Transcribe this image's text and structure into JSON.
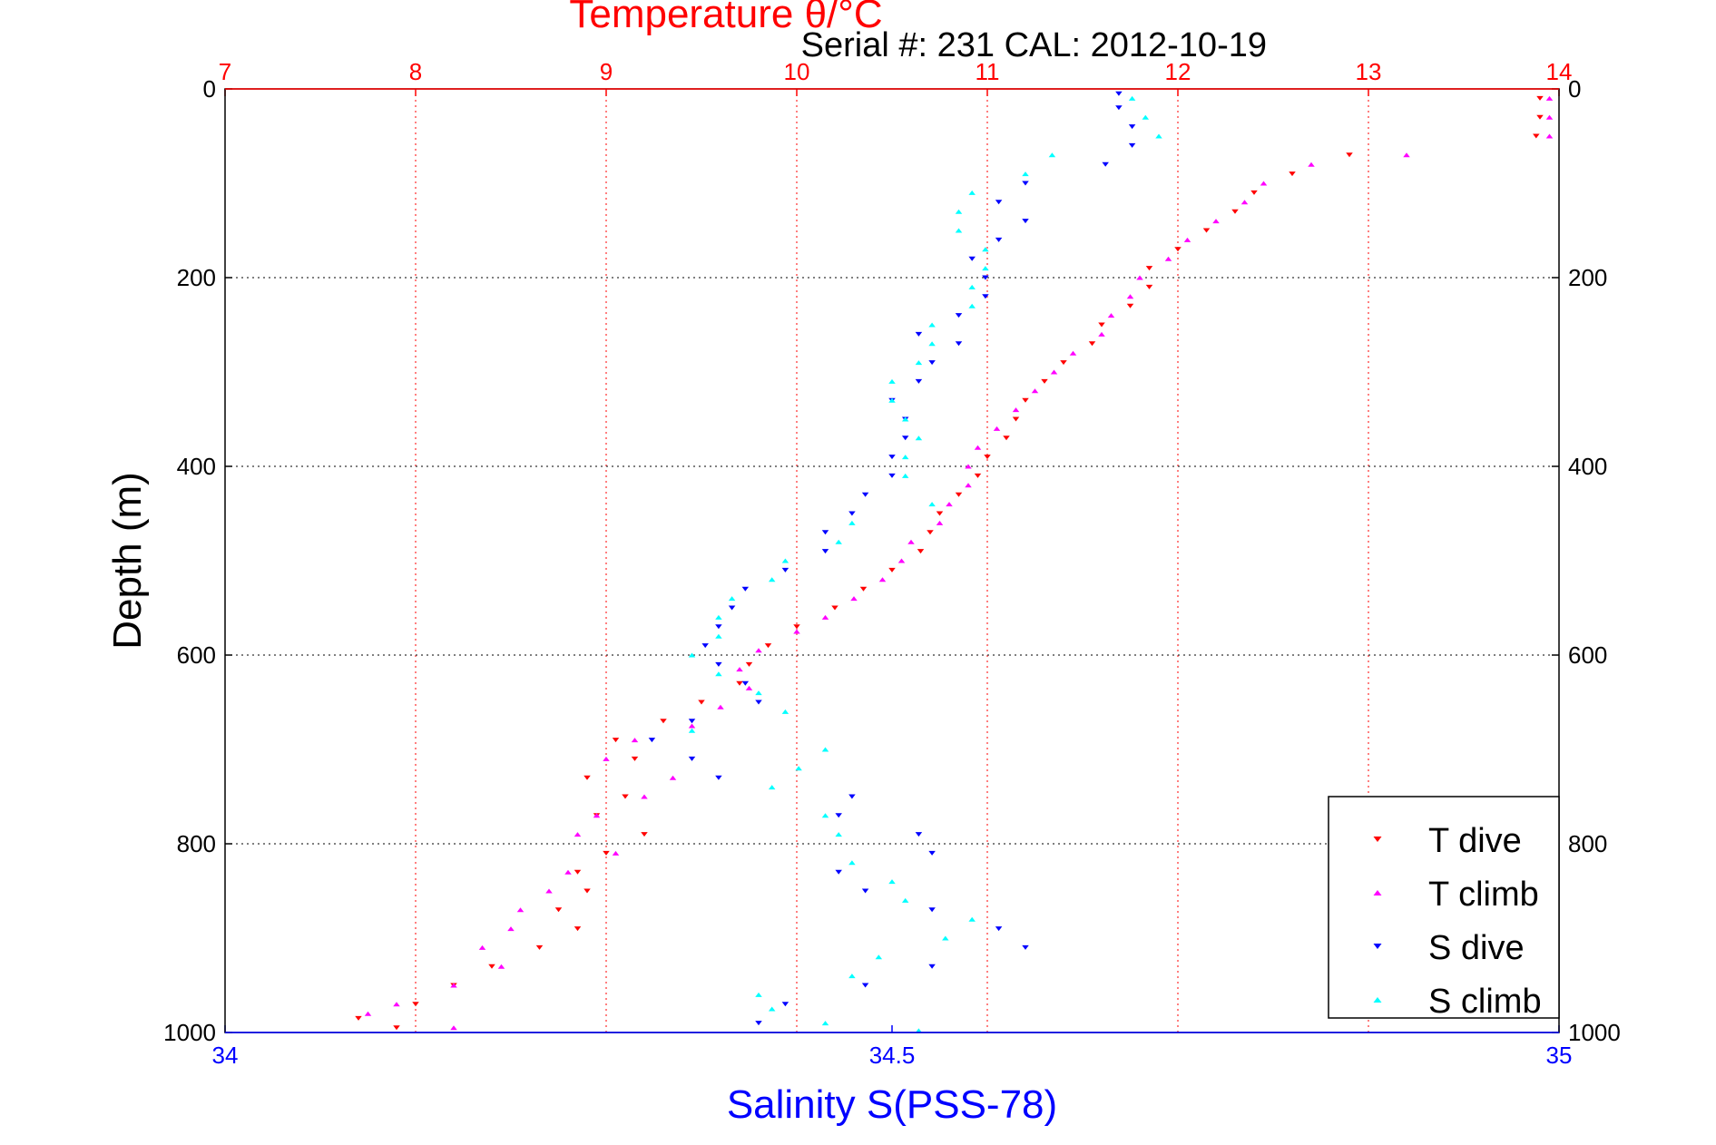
{
  "figure": {
    "top_title": "Temperature θ/°C",
    "subtitle": "Serial #: 231  CAL: 2012-10-19"
  },
  "colors": {
    "t_axis": "#ff0000",
    "s_axis": "#0000ff",
    "t_dive": "#ff0000",
    "t_climb": "#ff00ff",
    "s_dive": "#0000ff",
    "s_climb": "#00ffff",
    "grid_vertical": "#ff0000",
    "grid_horizontal": "#000000"
  },
  "chart_data": {
    "type": "scatter",
    "title": "Temperature θ/°C",
    "xlabel": "Salinity S(PSS-78)",
    "ylabel": "Depth (m)",
    "x_top": {
      "label": "Temperature θ/°C",
      "lim": [
        7,
        14
      ],
      "ticks": [
        7,
        8,
        9,
        10,
        11,
        12,
        13,
        14
      ]
    },
    "x_bottom": {
      "label": "Salinity S(PSS-78)",
      "lim": [
        34,
        35
      ],
      "ticks": [
        34,
        34.5,
        35
      ],
      "tick_labels": [
        "34",
        "34.5",
        "35"
      ]
    },
    "y": {
      "label": "Depth (m)",
      "lim": [
        0,
        1000
      ],
      "reversed": true,
      "ticks": [
        0,
        200,
        400,
        600,
        800,
        1000
      ]
    },
    "grid": true,
    "legend_position": "bottom-right",
    "series": [
      {
        "name": "T dive",
        "axis": "temperature",
        "marker": "triangle-down",
        "color": "#ff0000",
        "points": [
          [
            13.9,
            10
          ],
          [
            13.9,
            30
          ],
          [
            13.88,
            50
          ],
          [
            12.9,
            70
          ],
          [
            12.6,
            90
          ],
          [
            12.4,
            110
          ],
          [
            12.3,
            130
          ],
          [
            12.15,
            150
          ],
          [
            12.0,
            170
          ],
          [
            11.85,
            190
          ],
          [
            11.85,
            210
          ],
          [
            11.75,
            230
          ],
          [
            11.6,
            250
          ],
          [
            11.55,
            270
          ],
          [
            11.4,
            290
          ],
          [
            11.3,
            310
          ],
          [
            11.2,
            330
          ],
          [
            11.15,
            350
          ],
          [
            11.1,
            370
          ],
          [
            11.0,
            390
          ],
          [
            10.95,
            410
          ],
          [
            10.85,
            430
          ],
          [
            10.75,
            450
          ],
          [
            10.7,
            470
          ],
          [
            10.65,
            490
          ],
          [
            10.5,
            510
          ],
          [
            10.35,
            530
          ],
          [
            10.2,
            550
          ],
          [
            10.0,
            570
          ],
          [
            9.85,
            590
          ],
          [
            9.75,
            610
          ],
          [
            9.7,
            630
          ],
          [
            9.5,
            650
          ],
          [
            9.3,
            670
          ],
          [
            9.05,
            690
          ],
          [
            9.15,
            710
          ],
          [
            8.9,
            730
          ],
          [
            9.1,
            750
          ],
          [
            8.95,
            770
          ],
          [
            9.2,
            790
          ],
          [
            9.0,
            810
          ],
          [
            8.85,
            830
          ],
          [
            8.9,
            850
          ],
          [
            8.75,
            870
          ],
          [
            8.85,
            890
          ],
          [
            8.65,
            910
          ],
          [
            8.4,
            930
          ],
          [
            8.2,
            950
          ],
          [
            8.0,
            970
          ],
          [
            7.7,
            985
          ],
          [
            7.9,
            995
          ]
        ]
      },
      {
        "name": "T climb",
        "axis": "temperature",
        "marker": "triangle-up",
        "color": "#ff00ff",
        "points": [
          [
            13.95,
            10
          ],
          [
            13.95,
            30
          ],
          [
            13.95,
            50
          ],
          [
            13.2,
            70
          ],
          [
            12.7,
            80
          ],
          [
            12.45,
            100
          ],
          [
            12.35,
            120
          ],
          [
            12.2,
            140
          ],
          [
            12.05,
            160
          ],
          [
            11.95,
            180
          ],
          [
            11.8,
            200
          ],
          [
            11.75,
            220
          ],
          [
            11.65,
            240
          ],
          [
            11.6,
            260
          ],
          [
            11.45,
            280
          ],
          [
            11.35,
            300
          ],
          [
            11.25,
            320
          ],
          [
            11.15,
            340
          ],
          [
            11.05,
            360
          ],
          [
            10.95,
            380
          ],
          [
            10.9,
            400
          ],
          [
            10.9,
            420
          ],
          [
            10.8,
            440
          ],
          [
            10.75,
            460
          ],
          [
            10.6,
            480
          ],
          [
            10.55,
            500
          ],
          [
            10.45,
            520
          ],
          [
            10.3,
            540
          ],
          [
            10.15,
            560
          ],
          [
            10.0,
            575
          ],
          [
            9.8,
            595
          ],
          [
            9.7,
            615
          ],
          [
            9.75,
            635
          ],
          [
            9.6,
            655
          ],
          [
            9.45,
            675
          ],
          [
            9.15,
            690
          ],
          [
            9.0,
            710
          ],
          [
            9.35,
            730
          ],
          [
            9.2,
            750
          ],
          [
            8.95,
            770
          ],
          [
            8.85,
            790
          ],
          [
            9.05,
            810
          ],
          [
            8.8,
            830
          ],
          [
            8.7,
            850
          ],
          [
            8.55,
            870
          ],
          [
            8.5,
            890
          ],
          [
            8.35,
            910
          ],
          [
            8.45,
            930
          ],
          [
            8.2,
            950
          ],
          [
            7.9,
            970
          ],
          [
            7.75,
            980
          ],
          [
            8.2,
            995
          ]
        ]
      },
      {
        "name": "S dive",
        "axis": "salinity",
        "marker": "triangle-down",
        "color": "#0000ff",
        "points": [
          [
            34.67,
            5
          ],
          [
            34.67,
            20
          ],
          [
            34.68,
            40
          ],
          [
            34.68,
            60
          ],
          [
            34.66,
            80
          ],
          [
            34.6,
            100
          ],
          [
            34.58,
            120
          ],
          [
            34.6,
            140
          ],
          [
            34.58,
            160
          ],
          [
            34.56,
            180
          ],
          [
            34.57,
            200
          ],
          [
            34.57,
            220
          ],
          [
            34.55,
            240
          ],
          [
            34.52,
            260
          ],
          [
            34.55,
            270
          ],
          [
            34.53,
            290
          ],
          [
            34.52,
            310
          ],
          [
            34.5,
            330
          ],
          [
            34.51,
            350
          ],
          [
            34.51,
            370
          ],
          [
            34.5,
            390
          ],
          [
            34.5,
            410
          ],
          [
            34.48,
            430
          ],
          [
            34.47,
            450
          ],
          [
            34.45,
            470
          ],
          [
            34.45,
            490
          ],
          [
            34.42,
            510
          ],
          [
            34.39,
            530
          ],
          [
            34.38,
            550
          ],
          [
            34.37,
            570
          ],
          [
            34.36,
            590
          ],
          [
            34.37,
            610
          ],
          [
            34.39,
            630
          ],
          [
            34.4,
            650
          ],
          [
            34.35,
            670
          ],
          [
            34.32,
            690
          ],
          [
            34.35,
            710
          ],
          [
            34.37,
            730
          ],
          [
            34.47,
            750
          ],
          [
            34.46,
            770
          ],
          [
            34.52,
            790
          ],
          [
            34.53,
            810
          ],
          [
            34.46,
            830
          ],
          [
            34.48,
            850
          ],
          [
            34.53,
            870
          ],
          [
            34.58,
            890
          ],
          [
            34.6,
            910
          ],
          [
            34.53,
            930
          ],
          [
            34.48,
            950
          ],
          [
            34.42,
            970
          ],
          [
            34.4,
            990
          ]
        ]
      },
      {
        "name": "S climb",
        "axis": "salinity",
        "marker": "triangle-up",
        "color": "#00ffff",
        "points": [
          [
            34.68,
            10
          ],
          [
            34.69,
            30
          ],
          [
            34.7,
            50
          ],
          [
            34.62,
            70
          ],
          [
            34.6,
            90
          ],
          [
            34.56,
            110
          ],
          [
            34.55,
            130
          ],
          [
            34.55,
            150
          ],
          [
            34.57,
            170
          ],
          [
            34.57,
            190
          ],
          [
            34.56,
            210
          ],
          [
            34.56,
            230
          ],
          [
            34.53,
            250
          ],
          [
            34.53,
            270
          ],
          [
            34.52,
            290
          ],
          [
            34.5,
            310
          ],
          [
            34.5,
            330
          ],
          [
            34.51,
            350
          ],
          [
            34.52,
            370
          ],
          [
            34.51,
            390
          ],
          [
            34.51,
            410
          ],
          [
            34.53,
            440
          ],
          [
            34.47,
            460
          ],
          [
            34.46,
            480
          ],
          [
            34.42,
            500
          ],
          [
            34.41,
            520
          ],
          [
            34.38,
            540
          ],
          [
            34.37,
            560
          ],
          [
            34.37,
            580
          ],
          [
            34.35,
            600
          ],
          [
            34.37,
            620
          ],
          [
            34.4,
            640
          ],
          [
            34.42,
            660
          ],
          [
            34.35,
            680
          ],
          [
            34.45,
            700
          ],
          [
            34.43,
            720
          ],
          [
            34.41,
            740
          ],
          [
            34.45,
            770
          ],
          [
            34.46,
            790
          ],
          [
            34.47,
            820
          ],
          [
            34.5,
            840
          ],
          [
            34.51,
            860
          ],
          [
            34.56,
            880
          ],
          [
            34.54,
            900
          ],
          [
            34.49,
            920
          ],
          [
            34.47,
            940
          ],
          [
            34.4,
            960
          ],
          [
            34.41,
            975
          ],
          [
            34.45,
            990
          ],
          [
            34.52,
            998
          ]
        ]
      }
    ]
  },
  "legend": {
    "items": [
      {
        "label": "T dive",
        "color": "#ff0000",
        "marker": "triangle-down"
      },
      {
        "label": "T climb",
        "color": "#ff00ff",
        "marker": "triangle-up"
      },
      {
        "label": "S dive",
        "color": "#0000ff",
        "marker": "triangle-down"
      },
      {
        "label": "S climb",
        "color": "#00ffff",
        "marker": "triangle-up"
      }
    ]
  }
}
